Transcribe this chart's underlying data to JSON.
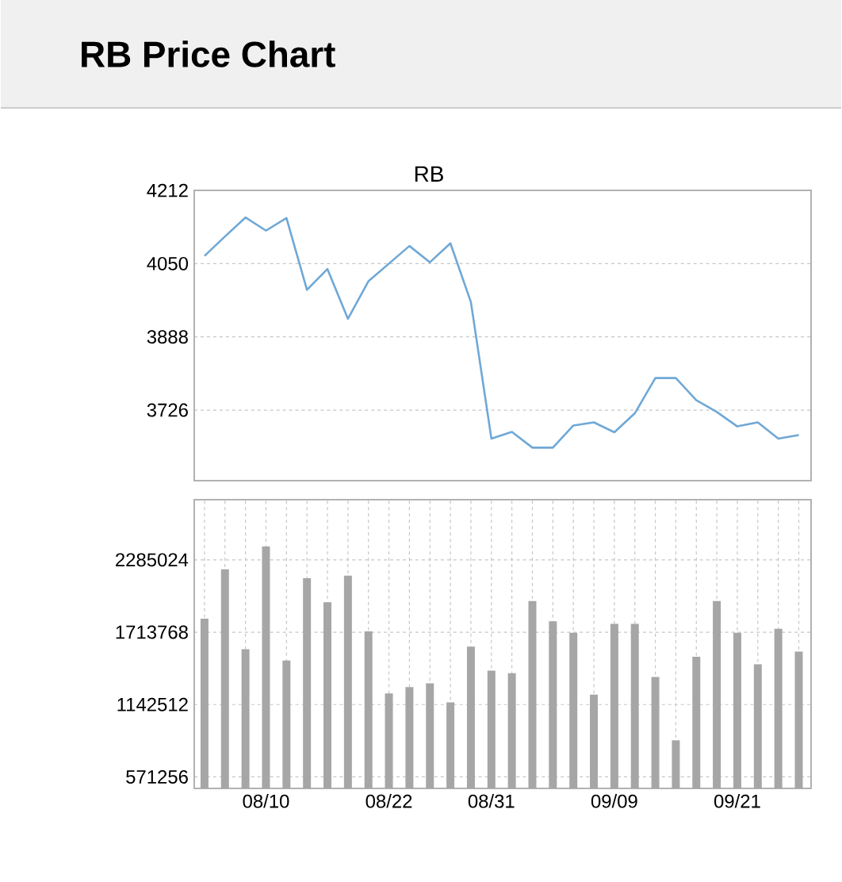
{
  "chart_data": [
    {
      "type": "line",
      "title": "RB Price Chart",
      "subtitle": "RB",
      "categories": [
        null,
        null,
        null,
        null,
        null,
        null,
        null,
        null,
        null,
        null,
        null,
        null,
        null,
        null,
        null,
        null,
        null,
        null,
        null,
        null,
        null,
        null,
        null,
        null,
        null,
        null,
        null,
        null,
        null,
        null
      ],
      "series": [
        {
          "color": "#6fa8d6",
          "values": [
            4067,
            4110,
            4152,
            4123,
            4151,
            3992,
            4038,
            3928,
            4011,
            4050,
            4089,
            4053,
            4095,
            3965,
            3663,
            3678,
            3643,
            3643,
            3692,
            3699,
            3677,
            3719,
            3797,
            3797,
            3748,
            3722,
            3690,
            3699,
            3663,
            3671
          ]
        }
      ],
      "ylim": [
        3570,
        4212
      ],
      "yticks": [
        3726,
        3888,
        4050,
        4212
      ],
      "grid": "y",
      "tick_labels": "y",
      "marker": "none",
      "line_style": "solid"
    },
    {
      "type": "bar",
      "categories": [
        null,
        null,
        null,
        "08/10",
        null,
        null,
        null,
        null,
        null,
        "08/22",
        null,
        null,
        null,
        null,
        "08/31",
        null,
        null,
        null,
        null,
        null,
        "09/09",
        null,
        null,
        null,
        null,
        null,
        "09/21",
        null,
        null,
        null
      ],
      "series": [
        {
          "color": "#a6a6a6",
          "values": [
            1820000,
            2210000,
            1580000,
            2390000,
            1490000,
            2140000,
            1950000,
            2160000,
            1720000,
            1230000,
            1280000,
            1310000,
            1160000,
            1600000,
            1410000,
            1390000,
            1960000,
            1800000,
            1710000,
            1220000,
            1780000,
            1780000,
            1360000,
            860000,
            1520000,
            1960000,
            1710000,
            1460000,
            1740000,
            1560000
          ]
        }
      ],
      "ylim": [
        480000,
        2760000
      ],
      "yticks": [
        571256,
        1142512,
        1713768,
        2285024
      ],
      "grid": true
    }
  ]
}
